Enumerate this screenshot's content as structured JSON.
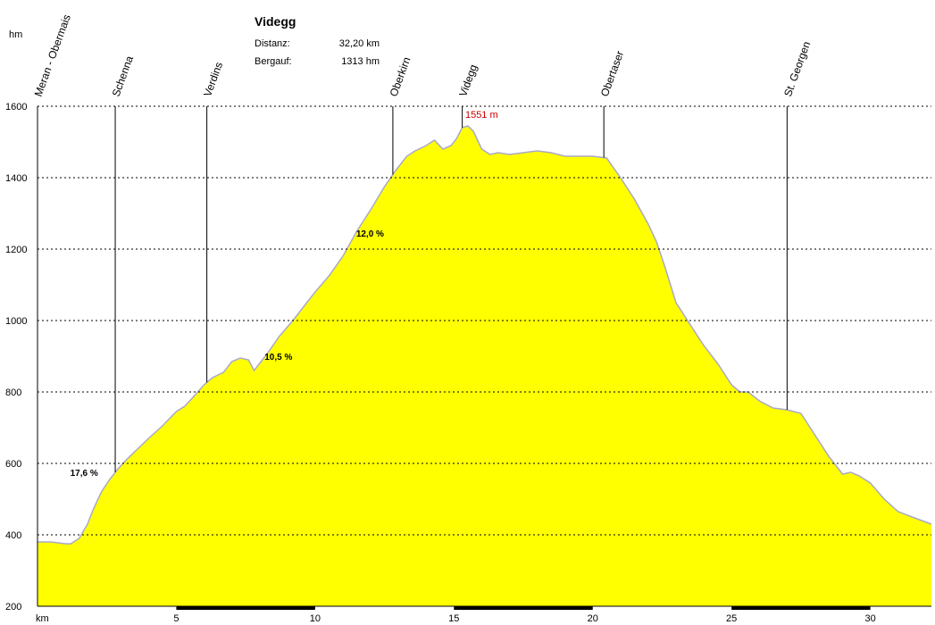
{
  "chart_data": {
    "type": "area",
    "title": "Videgg",
    "info": [
      {
        "label": "Distanz:",
        "value": "32,20 km"
      },
      {
        "label": "Bergauf:",
        "value": "1313 hm"
      }
    ],
    "ylabel": "hm",
    "xlabel": "km",
    "xlim": [
      0,
      32.2
    ],
    "ylim": [
      200,
      1600
    ],
    "x_ticks": [
      5,
      10,
      15,
      20,
      25,
      30
    ],
    "y_ticks": [
      200,
      400,
      600,
      800,
      1000,
      1200,
      1400,
      1600
    ],
    "grid": true,
    "fill_color": "#ffff00",
    "line_color": "#a9a9c8",
    "peak_color": "#cc0000",
    "series": [
      {
        "x": [
          0,
          0.5,
          1.0,
          1.2,
          1.5,
          1.8,
          2.0,
          2.3,
          2.6,
          2.9,
          3.2,
          3.6,
          4.0,
          4.5,
          5.0,
          5.3,
          5.6,
          6.0,
          6.3,
          6.7,
          7.0,
          7.3,
          7.6,
          7.8,
          8.0,
          8.3,
          8.7,
          9.2,
          9.6,
          10.0,
          10.5,
          11.0,
          11.5,
          12.0,
          12.5,
          12.9,
          13.3,
          13.6,
          14.0,
          14.3,
          14.6,
          14.9,
          15.1,
          15.3,
          15.5,
          15.7,
          16.0,
          16.3,
          16.6,
          17.0,
          17.5,
          18.0,
          18.5,
          19.0,
          19.5,
          20.0,
          20.5,
          21.0,
          21.5,
          22.0,
          22.3,
          22.6,
          23.0,
          23.5,
          24.0,
          24.5,
          25.0,
          25.3,
          25.6,
          26.0,
          26.5,
          27.0,
          27.5,
          28.0,
          28.5,
          29.0,
          29.3,
          29.6,
          30.0,
          30.5,
          31.0,
          31.5,
          32.2
        ],
        "y": [
          380,
          380,
          375,
          375,
          390,
          430,
          470,
          520,
          555,
          585,
          610,
          640,
          670,
          705,
          745,
          760,
          785,
          820,
          840,
          855,
          885,
          895,
          890,
          860,
          880,
          910,
          955,
          1000,
          1040,
          1080,
          1125,
          1180,
          1250,
          1310,
          1375,
          1420,
          1460,
          1475,
          1490,
          1505,
          1480,
          1490,
          1510,
          1540,
          1545,
          1530,
          1480,
          1465,
          1470,
          1465,
          1470,
          1475,
          1470,
          1460,
          1460,
          1460,
          1455,
          1400,
          1340,
          1270,
          1220,
          1150,
          1050,
          990,
          930,
          880,
          820,
          800,
          800,
          775,
          755,
          750,
          740,
          680,
          620,
          570,
          575,
          565,
          545,
          500,
          465,
          450,
          430
        ]
      }
    ],
    "waypoints": [
      {
        "name": "Meran - Obermais",
        "km": 0
      },
      {
        "name": "Schenna",
        "km": 2.8
      },
      {
        "name": "Verdins",
        "km": 6.1
      },
      {
        "name": "Oberkirn",
        "km": 12.8
      },
      {
        "name": "Videgg",
        "km": 15.3
      },
      {
        "name": "Obertaser",
        "km": 20.4
      },
      {
        "name": "St. Georgen",
        "km": 27.0
      }
    ],
    "peak": {
      "label": "1551 m",
      "km": 15.6,
      "elev": 1551
    },
    "gradients": [
      {
        "label": "17,6 %",
        "km": 1.5,
        "elev": 575
      },
      {
        "label": "10,5 %",
        "km": 8.5,
        "elev": 900
      },
      {
        "label": "12,0 %",
        "km": 11.8,
        "elev": 1245
      }
    ]
  }
}
